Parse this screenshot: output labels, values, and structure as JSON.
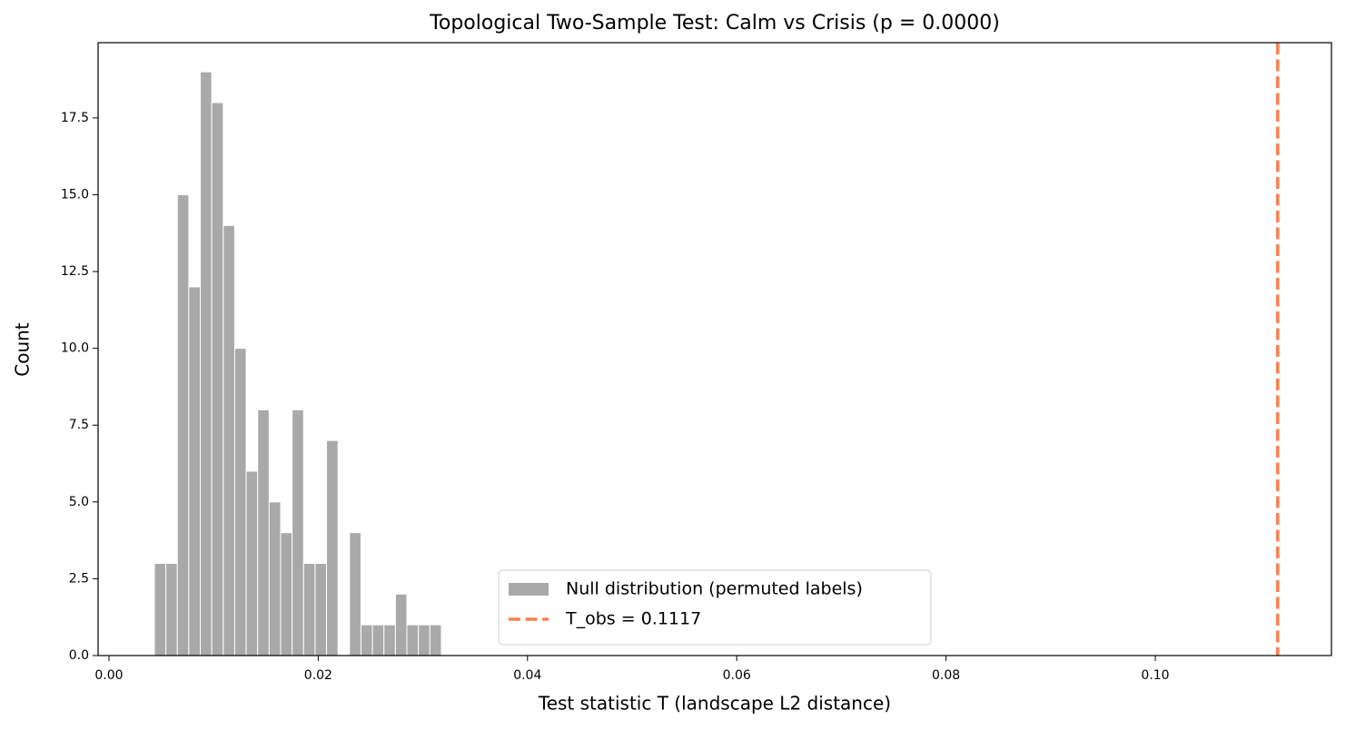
{
  "chart_data": {
    "type": "histogram",
    "title": "Topological Two-Sample Test: Calm vs Crisis (p = 0.0000)",
    "x_label": "Test statistic T (landscape L2 distance)",
    "y_label": "Count",
    "series": [
      {
        "name": "Null distribution (permuted labels)",
        "color": "#a9a9a9",
        "edgecolor": "#ffffff",
        "bins": [
          0.00434,
          0.005437,
          0.006534,
          0.007631,
          0.008728,
          0.009825,
          0.010922,
          0.012019,
          0.013116,
          0.014213,
          0.01531,
          0.016407,
          0.017504,
          0.018601,
          0.019698,
          0.020795,
          0.021892,
          0.022989,
          0.024086,
          0.025183,
          0.02628,
          0.027377,
          0.028474,
          0.029571,
          0.030668,
          0.031765
        ],
        "values": [
          3,
          3,
          15,
          12,
          19,
          18,
          14,
          10,
          6,
          8,
          5,
          4,
          8,
          3,
          3,
          7,
          0,
          4,
          1,
          1,
          1,
          2,
          1,
          1,
          1
        ]
      }
    ],
    "vline": {
      "name": "T_obs = 0.1117",
      "value": 0.1117,
      "color": "#ff7f50",
      "dash": "dashed"
    },
    "xlim": [
      -0.00104,
      0.11684
    ],
    "ylim": [
      0,
      19.95
    ],
    "xticks": [
      {
        "value": 0,
        "label": "0.00"
      },
      {
        "value": 0.02,
        "label": "0.02"
      },
      {
        "value": 0.04,
        "label": "0.04"
      },
      {
        "value": 0.06,
        "label": "0.06"
      },
      {
        "value": 0.08,
        "label": "0.08"
      },
      {
        "value": 0.1,
        "label": "0.10"
      }
    ],
    "yticks": [
      {
        "value": 0,
        "label": "0.0"
      },
      2.5,
      {
        "value": 5,
        "label": "5.0"
      },
      7.5,
      {
        "value": 10,
        "label": "10.0"
      },
      12.5,
      {
        "value": 15,
        "label": "15.0"
      },
      17.5
    ],
    "legend": "lower center",
    "grid": false
  }
}
